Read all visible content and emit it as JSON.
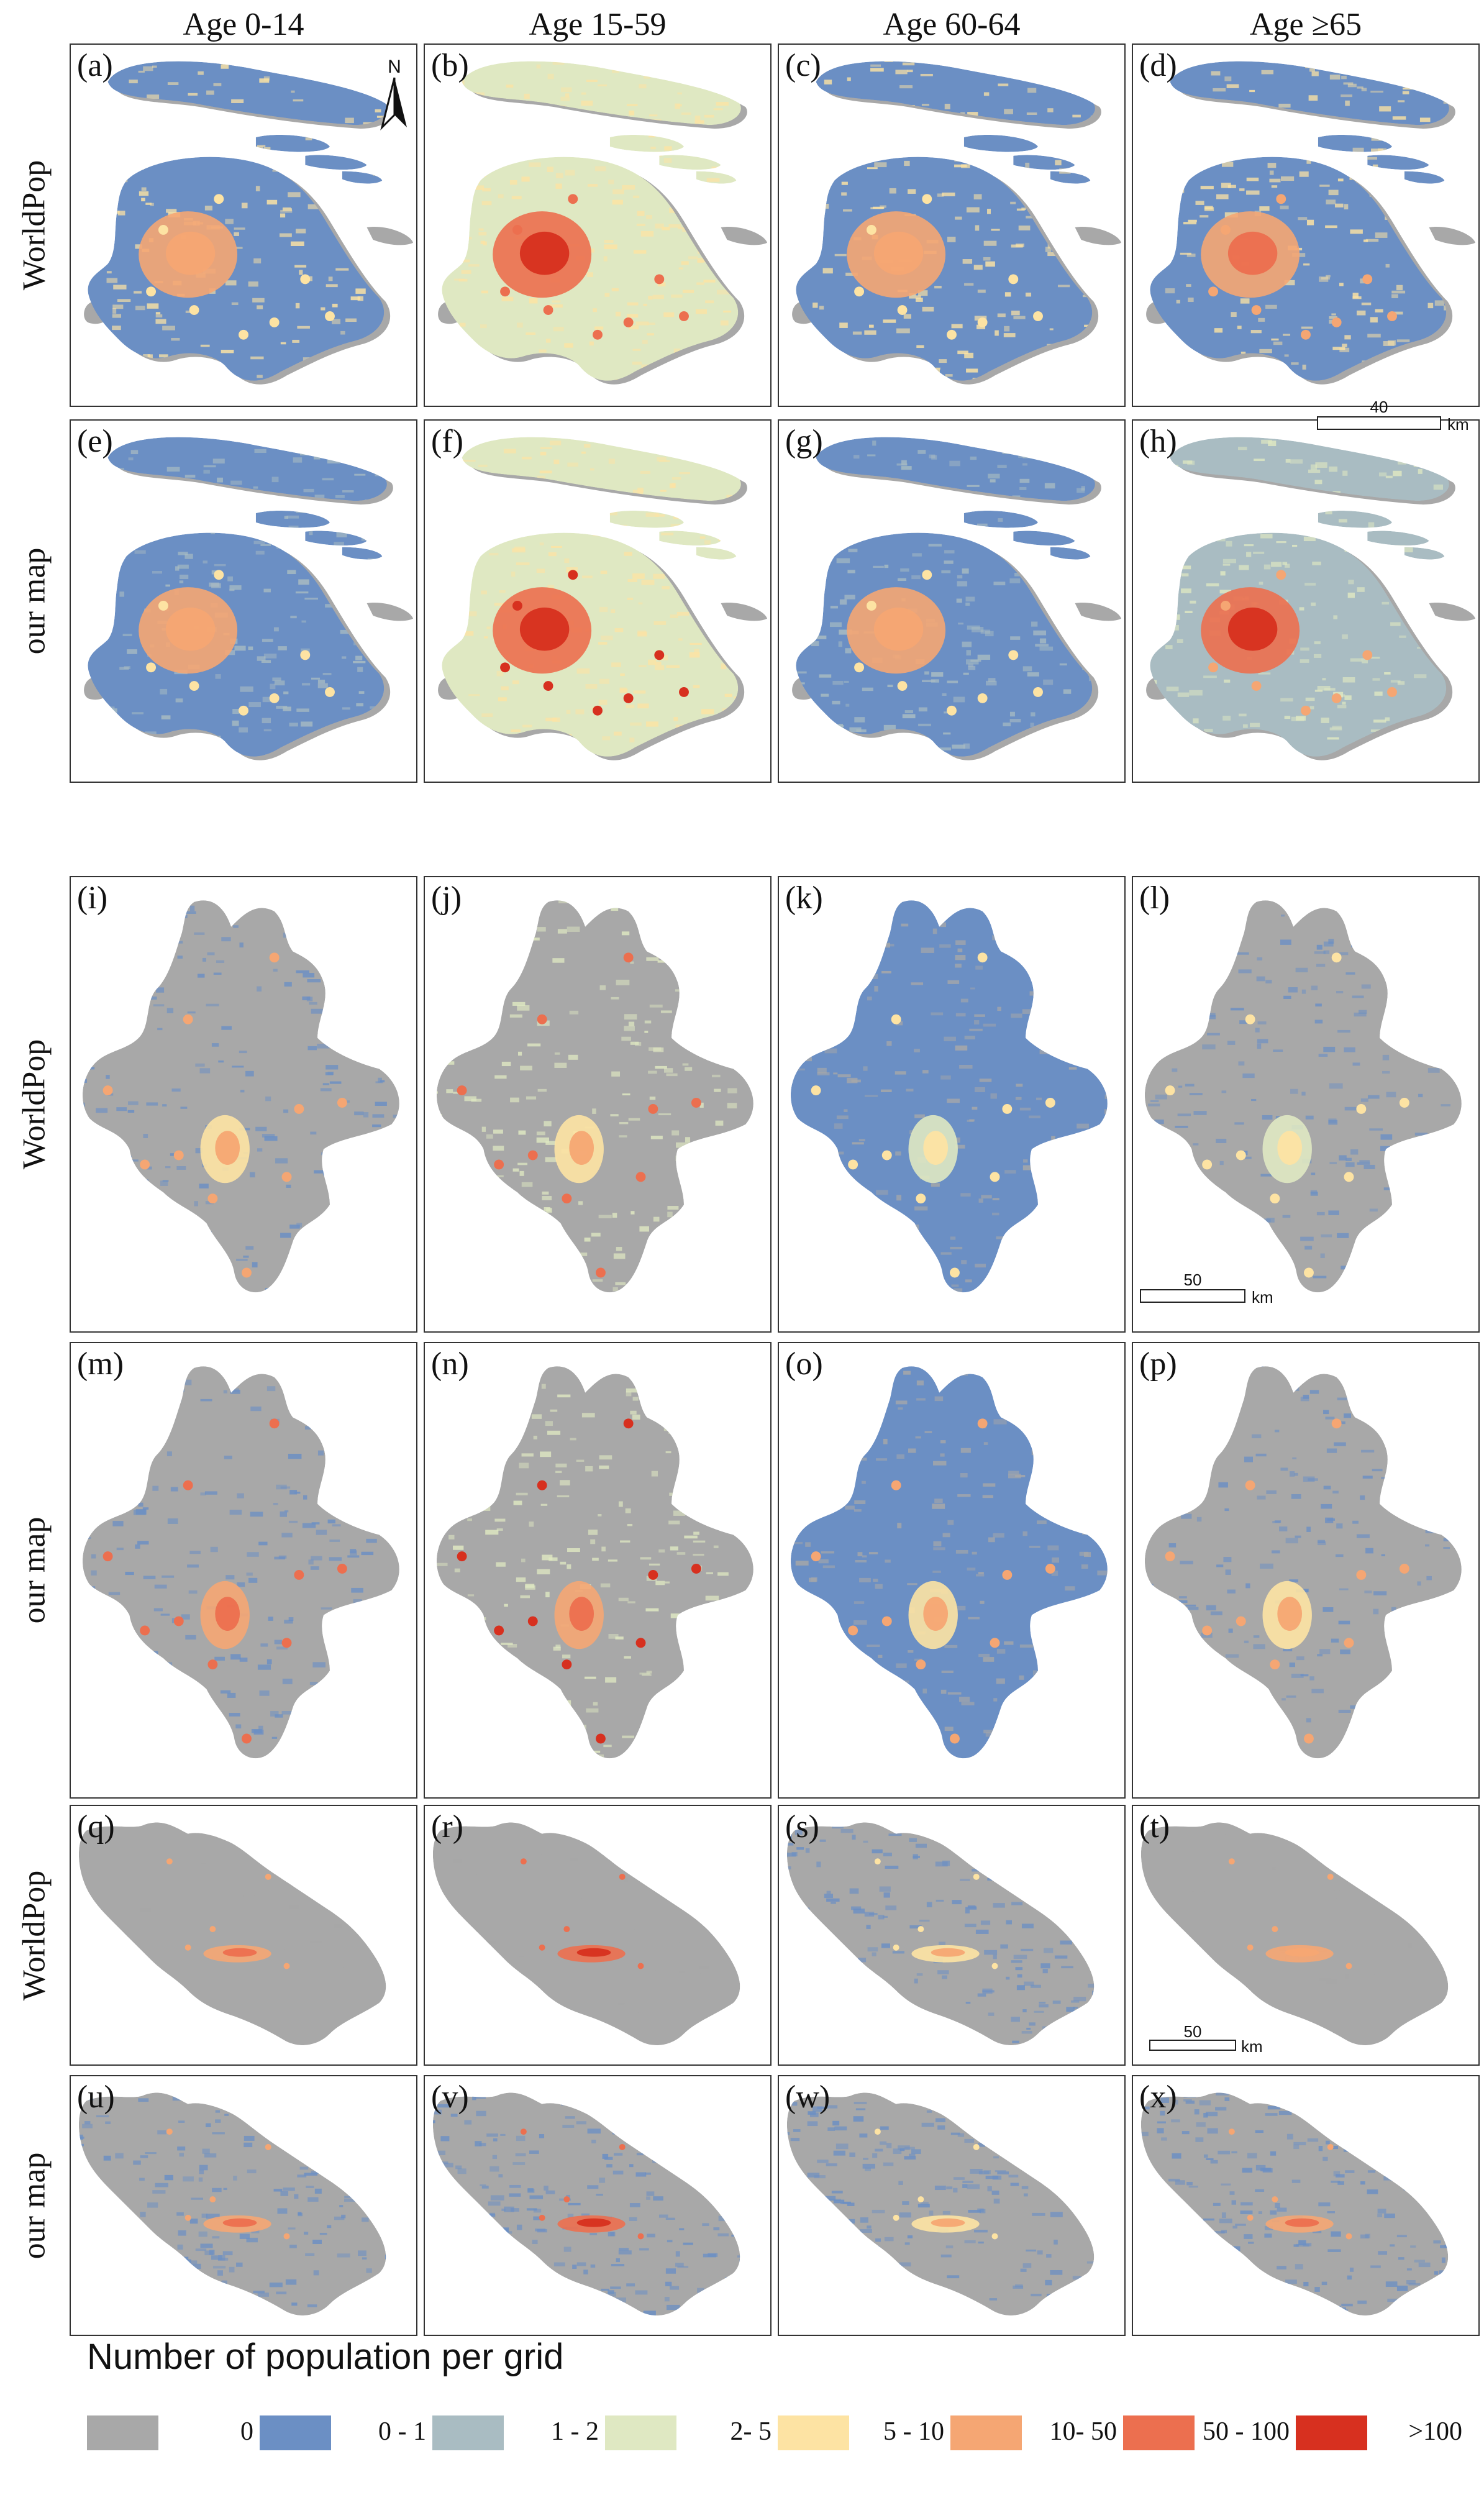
{
  "columns": [
    "Age 0-14",
    "Age 15-59",
    "Age 60-64",
    "Age ≥65"
  ],
  "rows": [
    "WorldPop",
    "our map",
    "WorldPop",
    "our map",
    "WorldPop",
    "our map"
  ],
  "panels": [
    "(a)",
    "(b)",
    "(c)",
    "(d)",
    "(e)",
    "(f)",
    "(g)",
    "(h)",
    "(i)",
    "(j)",
    "(k)",
    "(l)",
    "(m)",
    "(n)",
    "(o)",
    "(p)",
    "(q)",
    "(r)",
    "(s)",
    "(t)",
    "(u)",
    "(v)",
    "(w)",
    "(x)"
  ],
  "north_label": "N",
  "scalebars": [
    {
      "value": "40",
      "unit": "km"
    },
    {
      "value": "50",
      "unit": "km"
    },
    {
      "value": "50",
      "unit": "km"
    }
  ],
  "legend": {
    "title": "Number of population per grid",
    "items": [
      {
        "label": "0",
        "color": "#a8a8a8"
      },
      {
        "label": "0 - 1",
        "color": "#6b8fc4"
      },
      {
        "label": "1 - 2",
        "color": "#a9bcc2"
      },
      {
        "label": "2- 5",
        "color": "#dfe8c2"
      },
      {
        "label": "5 - 10",
        "color": "#fde3a3"
      },
      {
        "label": "10- 50",
        "color": "#f5a673"
      },
      {
        "label": "50 - 100",
        "color": "#ec6f4f"
      },
      {
        "label": ">100",
        "color": "#d7301f"
      }
    ]
  }
}
